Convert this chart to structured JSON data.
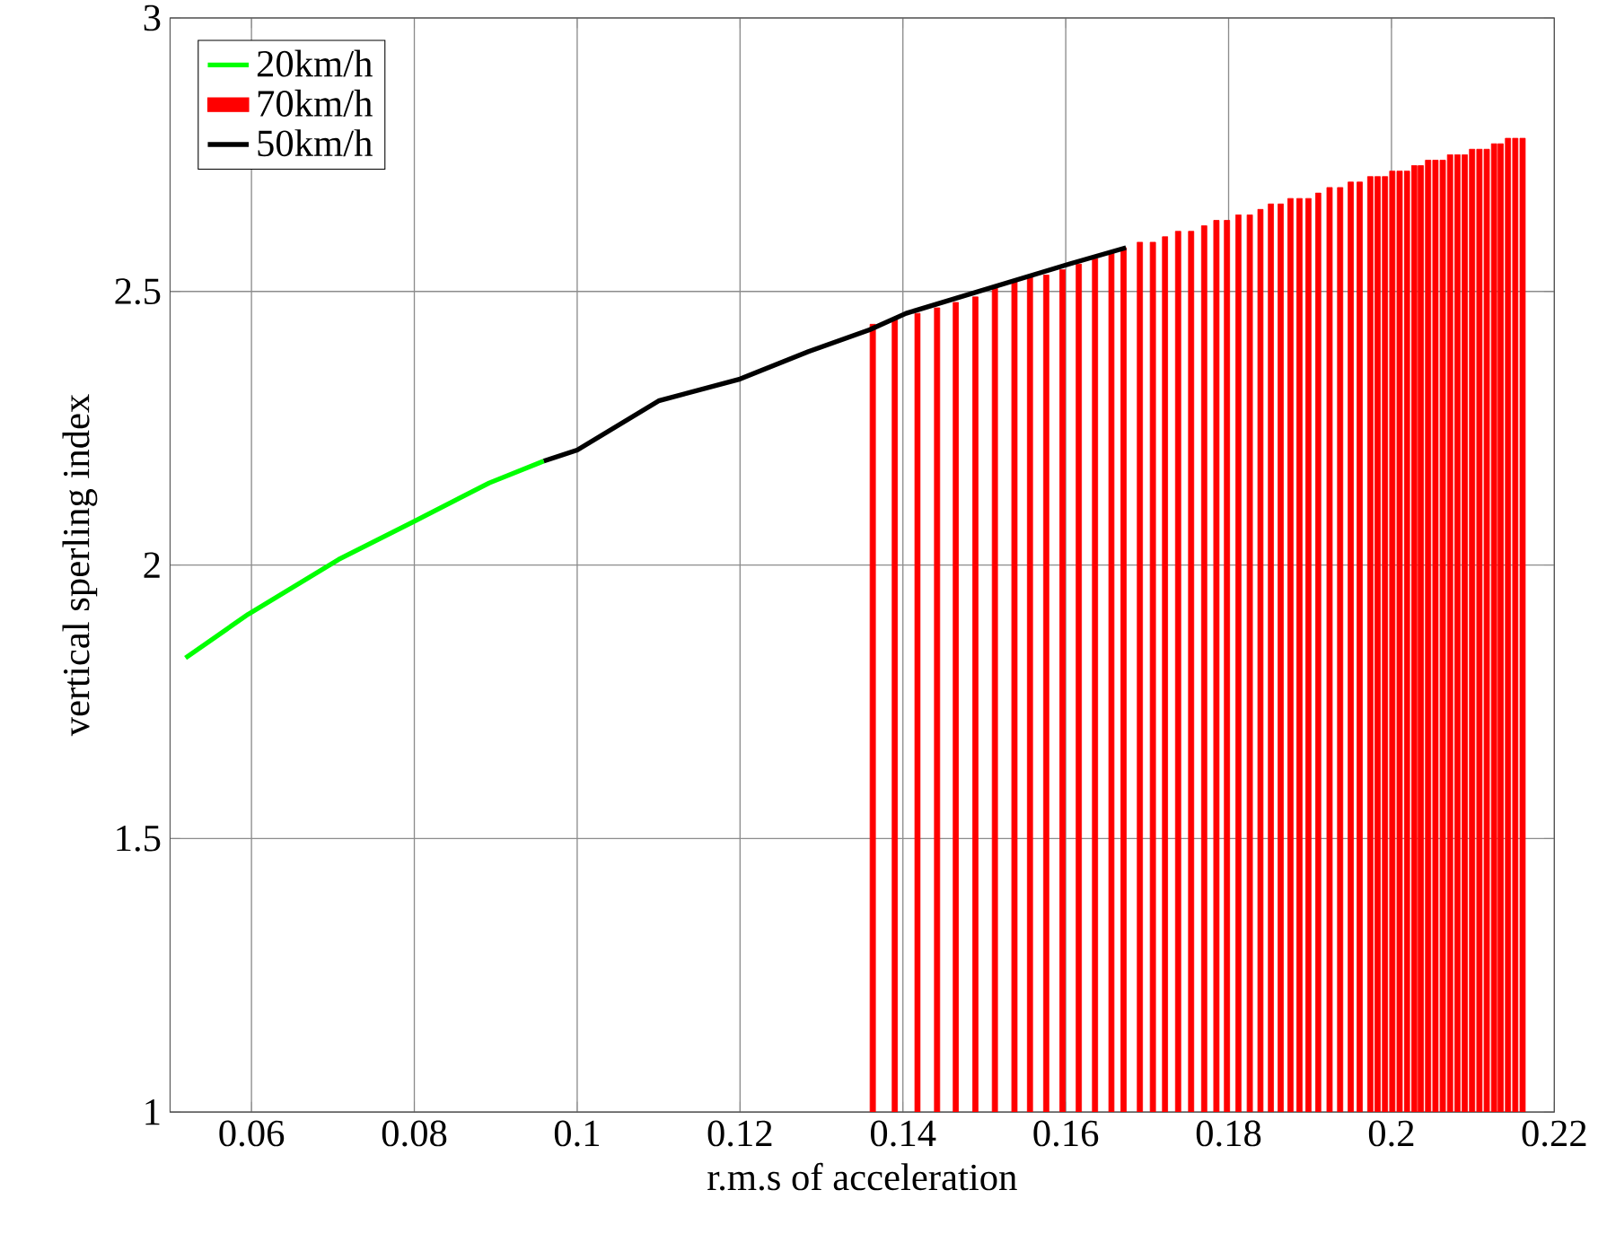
{
  "chart_data": {
    "type": "line",
    "xlabel": "r.m.s of acceleration",
    "ylabel": "vertical sperling index",
    "xlim": [
      0.05,
      0.22
    ],
    "xticks": [
      0.06,
      0.08,
      0.1,
      0.12,
      0.14,
      0.16,
      0.18,
      0.2,
      0.22
    ],
    "ylim": [
      1,
      3
    ],
    "yticks": [
      1,
      1.5,
      2,
      2.5,
      3
    ],
    "grid": true,
    "legend": "top left",
    "series": [
      {
        "name": "20km/h",
        "color": "#00ff00",
        "x": [
          0.0519,
          0.0596,
          0.0707,
          0.08,
          0.0892,
          0.0959
        ],
        "values": [
          1.83,
          1.91,
          2.01,
          2.08,
          2.15,
          2.19
        ]
      },
      {
        "name": "70km/h",
        "type": "bar",
        "color": "#ff0000",
        "x": [
          0.1363,
          0.139,
          0.1418,
          0.1442,
          0.1465,
          0.1489,
          0.1513,
          0.1537,
          0.1556,
          0.1576,
          0.1596,
          0.1616,
          0.1636,
          0.1656,
          0.1671,
          0.1691,
          0.1707,
          0.1722,
          0.1738,
          0.1754,
          0.177,
          0.1785,
          0.1798,
          0.1812,
          0.1826,
          0.1839,
          0.1852,
          0.1864,
          0.1876,
          0.1887,
          0.1898,
          0.191,
          0.1924,
          0.1937,
          0.195,
          0.1961,
          0.1974,
          0.1983,
          0.1992,
          0.2001,
          0.201,
          0.2019,
          0.2028,
          0.2036,
          0.2045,
          0.2054,
          0.2063,
          0.2072,
          0.2081,
          0.209,
          0.2099,
          0.2108,
          0.2117,
          0.2126,
          0.2134,
          0.2143,
          0.2152,
          0.2161
        ],
        "values": [
          2.44,
          2.45,
          2.46,
          2.47,
          2.48,
          2.49,
          2.51,
          2.52,
          2.53,
          2.53,
          2.54,
          2.55,
          2.56,
          2.57,
          2.58,
          2.59,
          2.59,
          2.6,
          2.61,
          2.61,
          2.62,
          2.63,
          2.63,
          2.64,
          2.64,
          2.65,
          2.66,
          2.66,
          2.67,
          2.67,
          2.67,
          2.68,
          2.69,
          2.69,
          2.7,
          2.7,
          2.71,
          2.71,
          2.71,
          2.72,
          2.72,
          2.72,
          2.73,
          2.73,
          2.74,
          2.74,
          2.74,
          2.75,
          2.75,
          2.75,
          2.76,
          2.76,
          2.76,
          2.77,
          2.77,
          2.78,
          2.78,
          2.78
        ]
      },
      {
        "name": "50km/h",
        "color": "#000000",
        "x": [
          0.0959,
          0.1,
          0.11,
          0.12,
          0.1284,
          0.1359,
          0.1404,
          0.1604,
          0.1674
        ],
        "values": [
          2.19,
          2.21,
          2.3,
          2.34,
          2.39,
          2.43,
          2.46,
          2.55,
          2.58
        ]
      }
    ]
  }
}
